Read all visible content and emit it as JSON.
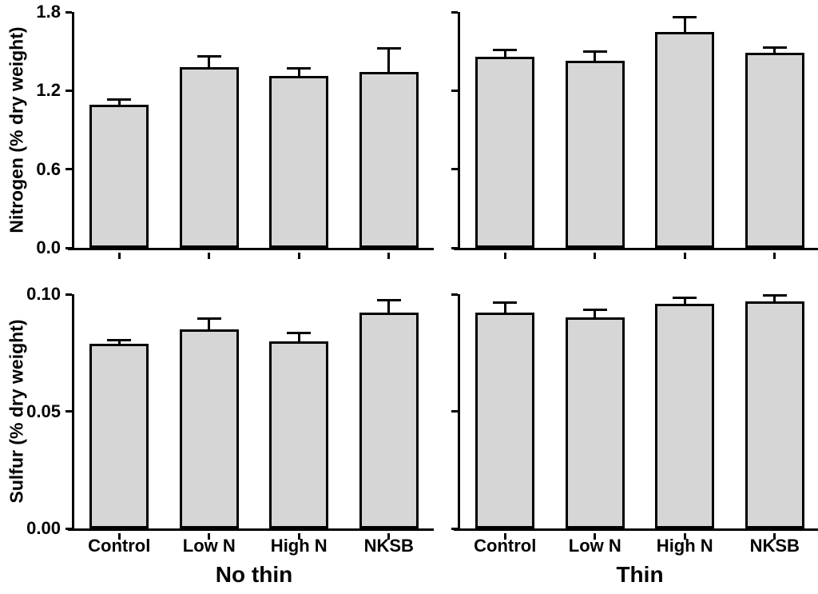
{
  "figure": {
    "background_color": "#ffffff",
    "bar_fill_color": "#d6d6d6",
    "bar_border_color": "#000000",
    "axis_color": "#000000",
    "categories": [
      "Control",
      "Low N",
      "High N",
      "NKSB"
    ],
    "column_titles": [
      "No thin",
      "Thin"
    ],
    "row_ylabels": [
      "Nitrogen (% dry weight)",
      "Sulfur (% dry weight)"
    ]
  },
  "chart_data": [
    {
      "type": "bar",
      "panel": "nitrogen-no-thin",
      "row": "Nitrogen",
      "column": "No thin",
      "ylabel": "Nitrogen (% dry weight)",
      "group_label": "",
      "categories": [
        "Control",
        "Low N",
        "High N",
        "NKSB"
      ],
      "values": [
        1.09,
        1.38,
        1.31,
        1.34
      ],
      "errors_plus": [
        0.05,
        0.09,
        0.07,
        0.19
      ],
      "ylim": [
        0,
        1.8
      ],
      "yticks": [
        0,
        0.6,
        1.2,
        1.8
      ],
      "ytick_labels": [
        "0.0",
        "0.6",
        "1.2",
        "1.8"
      ],
      "show_ytick_labels": true,
      "show_xtick_labels": false,
      "grid": false,
      "legend": "none"
    },
    {
      "type": "bar",
      "panel": "nitrogen-thin",
      "row": "Nitrogen",
      "column": "Thin",
      "ylabel": "",
      "group_label": "",
      "categories": [
        "Control",
        "Low N",
        "High N",
        "NKSB"
      ],
      "values": [
        1.46,
        1.43,
        1.65,
        1.49
      ],
      "errors_plus": [
        0.06,
        0.08,
        0.12,
        0.05
      ],
      "ylim": [
        0,
        1.8
      ],
      "yticks": [
        0,
        0.6,
        1.2,
        1.8
      ],
      "ytick_labels": [
        "0.0",
        "0.6",
        "1.2",
        "1.8"
      ],
      "show_ytick_labels": false,
      "show_xtick_labels": false,
      "grid": false,
      "legend": "none"
    },
    {
      "type": "bar",
      "panel": "sulfur-no-thin",
      "row": "Sulfur",
      "column": "No thin",
      "ylabel": "Sulfur (% dry weight)",
      "group_label": "No thin",
      "categories": [
        "Control",
        "Low N",
        "High N",
        "NKSB"
      ],
      "values": [
        0.079,
        0.085,
        0.08,
        0.092
      ],
      "errors_plus": [
        0.002,
        0.005,
        0.004,
        0.006
      ],
      "ylim": [
        0,
        0.1
      ],
      "yticks": [
        0,
        0.05,
        0.1
      ],
      "ytick_labels": [
        "0.00",
        "0.05",
        "0.10"
      ],
      "show_ytick_labels": true,
      "show_xtick_labels": true,
      "grid": false,
      "legend": "none"
    },
    {
      "type": "bar",
      "panel": "sulfur-thin",
      "row": "Sulfur",
      "column": "Thin",
      "ylabel": "",
      "group_label": "Thin",
      "categories": [
        "Control",
        "Low N",
        "High N",
        "NKSB"
      ],
      "values": [
        0.092,
        0.09,
        0.096,
        0.097
      ],
      "errors_plus": [
        0.005,
        0.004,
        0.003,
        0.003
      ],
      "ylim": [
        0,
        0.1
      ],
      "yticks": [
        0,
        0.05,
        0.1
      ],
      "ytick_labels": [
        "0.00",
        "0.05",
        "0.10"
      ],
      "show_ytick_labels": false,
      "show_xtick_labels": true,
      "grid": false,
      "legend": "none"
    }
  ]
}
